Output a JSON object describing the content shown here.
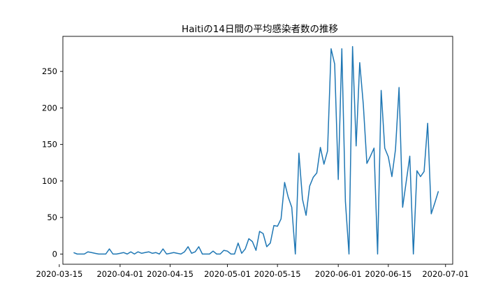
{
  "chart_data": {
    "type": "line",
    "title": "Haitiの14日間の平均感染者数の推移",
    "xlabel": "",
    "ylabel": "",
    "color": "#1f77b4",
    "grid": false,
    "x_start": "2020-03-19",
    "x_end": "2020-06-29",
    "xlim": [
      "2020-03-16",
      "2020-07-03"
    ],
    "ylim": [
      -14,
      298
    ],
    "x_ticks": [
      "2020-03-15",
      "2020-04-01",
      "2020-04-15",
      "2020-05-01",
      "2020-05-15",
      "2020-06-01",
      "2020-06-15",
      "2020-07-01"
    ],
    "y_ticks": [
      0,
      50,
      100,
      150,
      200,
      250
    ],
    "values": [
      2,
      0,
      0,
      0,
      3,
      2,
      1,
      0,
      0,
      0,
      7,
      0,
      0,
      1,
      2,
      0,
      3,
      0,
      3,
      1,
      2,
      3,
      1,
      2,
      0,
      7,
      0,
      1,
      2,
      1,
      0,
      3,
      10,
      1,
      3,
      10,
      0,
      0,
      0,
      4,
      0,
      0,
      5,
      4,
      0,
      0,
      15,
      1,
      7,
      21,
      17,
      5,
      31,
      28,
      10,
      15,
      39,
      38,
      48,
      98,
      78,
      64,
      0,
      138,
      75,
      53,
      93,
      105,
      111,
      146,
      123,
      141,
      281,
      260,
      102,
      281,
      72,
      0,
      284,
      148,
      262,
      205,
      124,
      134,
      145,
      0,
      224,
      145,
      133,
      106,
      143,
      228,
      64,
      99,
      134,
      0,
      114,
      106,
      113,
      179,
      55,
      70,
      86
    ]
  }
}
